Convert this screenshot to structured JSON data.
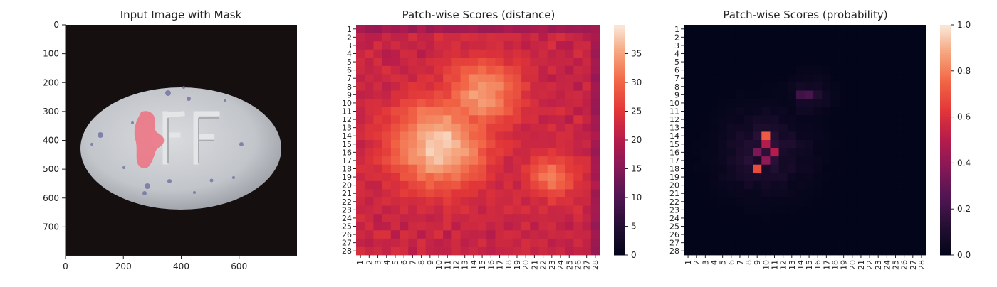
{
  "chart_data": [
    {
      "type": "image",
      "title": "Input Image with Mask",
      "xticks": [
        "0",
        "200",
        "400",
        "600"
      ],
      "yticks": [
        "0",
        "100",
        "200",
        "300",
        "400",
        "500",
        "600",
        "700"
      ],
      "xlim": [
        0,
        800
      ],
      "ylim": [
        800,
        0
      ],
      "image_size": [
        800,
        800
      ],
      "background_color": "#150f0f",
      "object_color": "#c8cacd",
      "mask_color": "#f06a7a"
    },
    {
      "type": "heatmap",
      "title": "Patch-wise Scores (distance)",
      "xticks": [
        "1",
        "2",
        "3",
        "4",
        "5",
        "6",
        "7",
        "8",
        "9",
        "10",
        "11",
        "12",
        "13",
        "14",
        "15",
        "16",
        "17",
        "18",
        "19",
        "20",
        "21",
        "22",
        "23",
        "24",
        "25",
        "26",
        "27",
        "28"
      ],
      "yticks": [
        "1",
        "2",
        "3",
        "4",
        "5",
        "6",
        "7",
        "8",
        "9",
        "10",
        "11",
        "12",
        "13",
        "14",
        "15",
        "16",
        "17",
        "18",
        "19",
        "20",
        "21",
        "22",
        "23",
        "24",
        "25",
        "26",
        "27",
        "28"
      ],
      "grid_size": 28,
      "vmin": 0,
      "vmax": 40,
      "colorbar_ticks": [
        "0",
        "5",
        "10",
        "15",
        "20",
        "25",
        "30",
        "35"
      ],
      "colorbar_values": [
        0,
        5,
        10,
        15,
        20,
        25,
        30,
        35
      ],
      "colormap": "rocket",
      "background_level": 21,
      "hotspots": [
        {
          "row": 15,
          "col": 10,
          "value": 38
        },
        {
          "row": 9,
          "col": 15,
          "value": 34
        },
        {
          "row": 19,
          "col": 23,
          "value": 31
        }
      ]
    },
    {
      "type": "heatmap",
      "title": "Patch-wise Scores (probability)",
      "xticks": [
        "1",
        "2",
        "3",
        "4",
        "5",
        "6",
        "7",
        "8",
        "9",
        "10",
        "11",
        "12",
        "13",
        "14",
        "15",
        "16",
        "17",
        "18",
        "19",
        "20",
        "21",
        "22",
        "23",
        "24",
        "25",
        "26",
        "27",
        "28"
      ],
      "yticks": [
        "1",
        "2",
        "3",
        "4",
        "5",
        "6",
        "7",
        "8",
        "9",
        "10",
        "11",
        "12",
        "13",
        "14",
        "15",
        "16",
        "17",
        "18",
        "19",
        "20",
        "21",
        "22",
        "23",
        "24",
        "25",
        "26",
        "27",
        "28"
      ],
      "grid_size": 28,
      "vmin": 0.0,
      "vmax": 1.0,
      "colorbar_ticks": [
        "0.0",
        "0.2",
        "0.4",
        "0.6",
        "0.8",
        "1.0"
      ],
      "colorbar_values": [
        0.0,
        0.2,
        0.4,
        0.6,
        0.8,
        1.0
      ],
      "colormap": "rocket",
      "highlighted_cells": [
        {
          "row": 14,
          "col": 10,
          "value": 0.72
        },
        {
          "row": 18,
          "col": 9,
          "value": 0.68
        },
        {
          "row": 15,
          "col": 10,
          "value": 0.5
        },
        {
          "row": 16,
          "col": 11,
          "value": 0.5
        },
        {
          "row": 17,
          "col": 10,
          "value": 0.4
        },
        {
          "row": 16,
          "col": 9,
          "value": 0.35
        },
        {
          "row": 9,
          "col": 15,
          "value": 0.22
        },
        {
          "row": 9,
          "col": 14,
          "value": 0.2
        }
      ]
    }
  ]
}
